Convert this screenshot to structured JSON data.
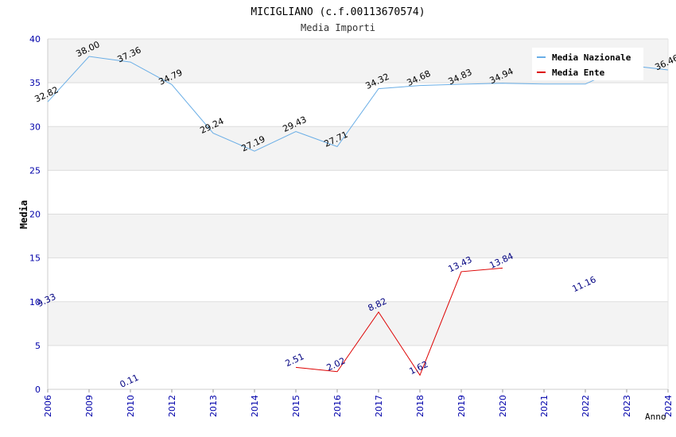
{
  "chart_data": {
    "type": "line",
    "title": "MICIGLIANO (c.f.00113670574)",
    "subtitle": "Media Importi",
    "xlabel": "Anno",
    "ylabel": "Media",
    "ylim": [
      0,
      40
    ],
    "yticks": [
      "0",
      "5",
      "10",
      "15",
      "20",
      "25",
      "30",
      "35",
      "40"
    ],
    "categories": [
      "2006",
      "2009",
      "2010",
      "2012",
      "2013",
      "2014",
      "2015",
      "2016",
      "2017",
      "2018",
      "2019",
      "2020",
      "2021",
      "2022",
      "2023",
      "2024"
    ],
    "grid": true,
    "legend_position": "top-right",
    "series": [
      {
        "name": "Media Nazionale",
        "color": "#6aaee6",
        "label_color": "#000000",
        "values": [
          32.82,
          38.0,
          37.36,
          34.79,
          29.24,
          27.19,
          29.43,
          27.71,
          34.32,
          34.68,
          34.83,
          34.94,
          34.85,
          34.85,
          37.0,
          36.46
        ],
        "labels": [
          "32.82",
          "38.00",
          "37.36",
          "34.79",
          "29.24",
          "27.19",
          "29.43",
          "27.71",
          "34.32",
          "34.68",
          "34.83",
          "34.94",
          "",
          "",
          "",
          "36.46"
        ]
      },
      {
        "name": "Media Ente",
        "color": "#dd0000",
        "label_color": "#000080",
        "values": [
          9.33,
          null,
          0.11,
          null,
          null,
          null,
          2.51,
          2.02,
          8.82,
          1.62,
          13.43,
          13.84,
          null,
          11.16,
          null,
          null
        ],
        "labels": [
          "9.33",
          "",
          "0.11",
          "",
          "",
          "",
          "2.51",
          "2.02",
          "8.82",
          "1.62",
          "13.43",
          "13.84",
          "",
          "11.16",
          "",
          ""
        ]
      }
    ]
  }
}
